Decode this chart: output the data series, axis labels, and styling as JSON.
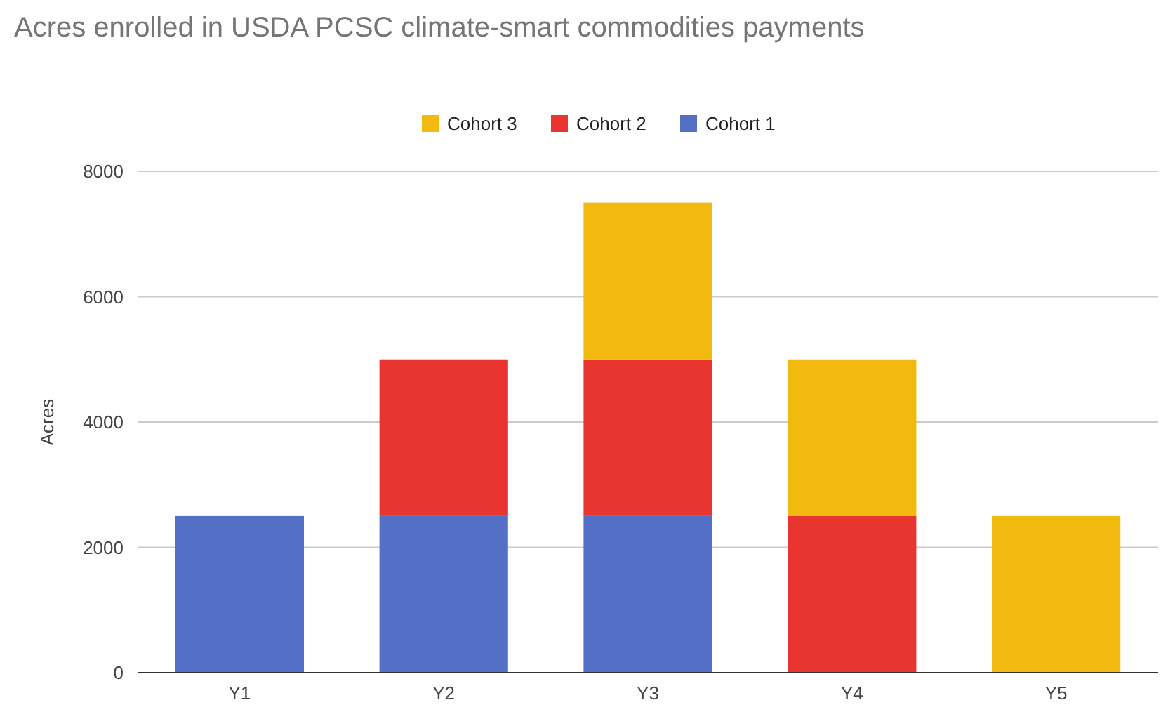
{
  "chart_data": {
    "type": "bar",
    "title": "Acres enrolled in USDA PCSC climate-smart commodities payments",
    "ylabel": "Acres",
    "categories": [
      "Y1",
      "Y2",
      "Y3",
      "Y4",
      "Y5"
    ],
    "stacked": true,
    "series": [
      {
        "name": "Cohort 1",
        "color": "#5470c6",
        "values": [
          2500,
          2500,
          2500,
          null,
          null
        ]
      },
      {
        "name": "Cohort 2",
        "color": "#e8352f",
        "values": [
          null,
          2500,
          2500,
          2500,
          null
        ]
      },
      {
        "name": "Cohort 3",
        "color": "#f2b90f",
        "values": [
          null,
          null,
          2500,
          2500,
          2500
        ]
      }
    ],
    "ylim": [
      0,
      8000
    ],
    "yticks": [
      0,
      2000,
      4000,
      6000,
      8000
    ],
    "grid": "y",
    "legend": "top"
  }
}
